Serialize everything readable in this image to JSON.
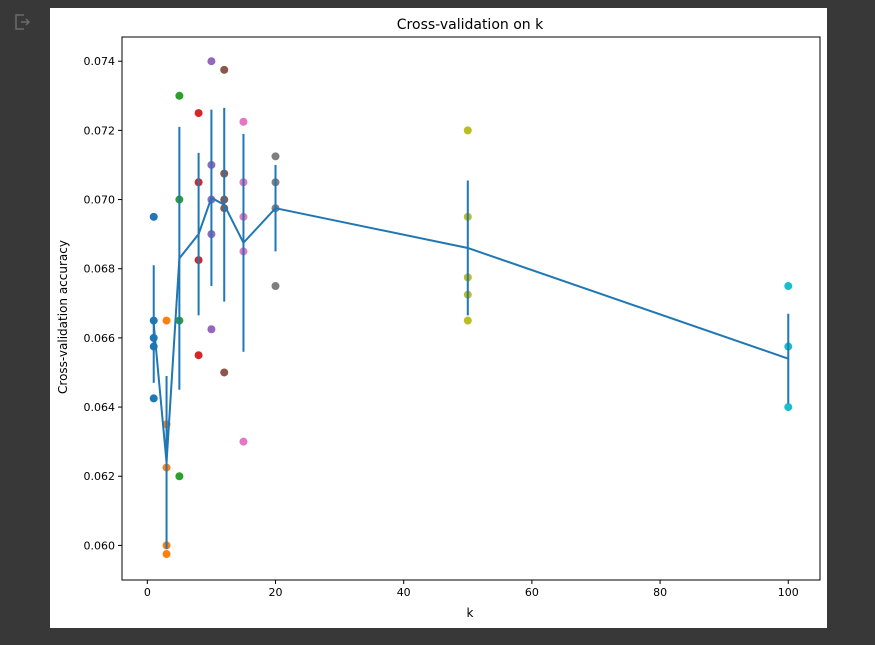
{
  "output_icon": "output-redirect-icon",
  "chart_data": {
    "type": "scatter",
    "title": "Cross-validation on k",
    "xlabel": "k",
    "ylabel": "Cross-validation accuracy",
    "xlim": [
      -3.95,
      104.95
    ],
    "ylim": [
      0.059,
      0.0747
    ],
    "xticks": [
      0,
      20,
      40,
      60,
      80,
      100
    ],
    "xtick_labels": [
      "0",
      "20",
      "40",
      "60",
      "80",
      "100"
    ],
    "yticks": [
      0.06,
      0.062,
      0.064,
      0.066,
      0.068,
      0.07,
      0.072,
      0.074
    ],
    "ytick_labels": [
      "0.060",
      "0.062",
      "0.064",
      "0.066",
      "0.068",
      "0.070",
      "0.072",
      "0.074"
    ],
    "grid": false,
    "scatter_series": [
      {
        "k": 1,
        "color": "#1f77b4",
        "values": [
          0.06425,
          0.06575,
          0.066,
          0.0665,
          0.0695
        ]
      },
      {
        "k": 3,
        "color": "#ff7f0e",
        "values": [
          0.05975,
          0.06,
          0.06225,
          0.0635,
          0.0665
        ]
      },
      {
        "k": 5,
        "color": "#2ca02c",
        "values": [
          0.062,
          0.0665,
          0.07,
          0.073
        ]
      },
      {
        "k": 8,
        "color": "#d62728",
        "values": [
          0.0655,
          0.06825,
          0.0705,
          0.0725
        ]
      },
      {
        "k": 10,
        "color": "#9467bd",
        "values": [
          0.06625,
          0.069,
          0.07,
          0.071,
          0.074
        ]
      },
      {
        "k": 12,
        "color": "#8c564b",
        "values": [
          0.065,
          0.06975,
          0.07,
          0.07075,
          0.07375
        ]
      },
      {
        "k": 15,
        "color": "#e377c2",
        "values": [
          0.063,
          0.0685,
          0.0695,
          0.0705,
          0.07225
        ]
      },
      {
        "k": 20,
        "color": "#7f7f7f",
        "values": [
          0.0675,
          0.06975,
          0.0705,
          0.07125
        ]
      },
      {
        "k": 50,
        "color": "#bcbd22",
        "values": [
          0.0665,
          0.06725,
          0.06775,
          0.0695,
          0.072
        ]
      },
      {
        "k": 100,
        "color": "#17becf",
        "values": [
          0.064,
          0.06575,
          0.0675
        ]
      }
    ],
    "errorbar_series": {
      "color": "#1f77b4",
      "x": [
        1,
        3,
        5,
        8,
        10,
        12,
        15,
        20,
        50,
        100
      ],
      "mean": [
        0.0664,
        0.0624,
        0.0683,
        0.069,
        0.07005,
        0.06985,
        0.06875,
        0.06975,
        0.0686,
        0.0654
      ],
      "std": [
        0.0017,
        0.0025,
        0.0038,
        0.00235,
        0.00255,
        0.0028,
        0.00315,
        0.00125,
        0.00195,
        0.0013
      ]
    }
  }
}
